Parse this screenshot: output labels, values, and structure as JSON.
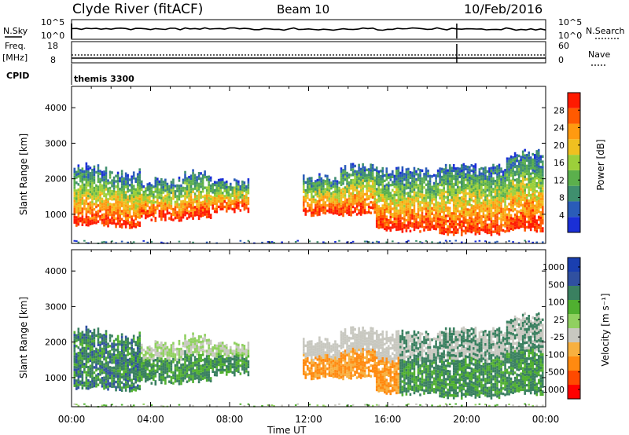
{
  "header": {
    "station": "Clyde River (fitACF)",
    "beam": "Beam 10",
    "date": "10/Feb/2016"
  },
  "top_panels": {
    "nsky_label": "N.Sky",
    "nsky_ticks": [
      "10^5",
      "10^0"
    ],
    "nsearch_label": "N.Search",
    "nsearch_ticks": [
      "10^5",
      "10^0"
    ],
    "freq_label": "Freq.",
    "freq_unit": "[MHz]",
    "freq_ticks": [
      "18",
      "8"
    ],
    "nave_label": "Nave",
    "nave_ticks": [
      "60",
      "0"
    ],
    "cpid_label": "CPID",
    "cpid_value": "themis 3300"
  },
  "colors": {
    "power": [
      "#1a2fd6",
      "#2a5cb8",
      "#3f8f6e",
      "#5bb04c",
      "#9ccf3a",
      "#f0c020",
      "#ff9a10",
      "#ff5a00",
      "#ff1a00"
    ],
    "velocity": [
      "#ff0000",
      "#ff4a00",
      "#ff8a10",
      "#f7b040",
      "#c8c8c0",
      "#90d060",
      "#50b030",
      "#3a8060",
      "#3050a0",
      "#1a3fb0"
    ]
  },
  "chart_data": [
    {
      "type": "heatmap",
      "title": "Power",
      "ylabel": "Slant Range [km]",
      "xlabel": "Time UT",
      "xticks": [
        "00:00",
        "04:00",
        "08:00",
        "12:00",
        "16:00",
        "20:00",
        "00:00"
      ],
      "yticks": [
        "1000",
        "2000",
        "3000",
        "4000"
      ],
      "ylim": [
        180,
        4600
      ],
      "xlim_hours": [
        0,
        24
      ],
      "colorbar": {
        "label": "Power [dB]",
        "ticks": [
          "4",
          "8",
          "12",
          "16",
          "20",
          "24",
          "28"
        ],
        "range": [
          0,
          32
        ]
      }
    },
    {
      "type": "heatmap",
      "title": "Velocity",
      "ylabel": "Slant Range [km]",
      "xlabel": "Time UT",
      "xticks": [
        "00:00",
        "04:00",
        "08:00",
        "12:00",
        "16:00",
        "20:00",
        "00:00"
      ],
      "yticks": [
        "1000",
        "2000",
        "3000",
        "4000"
      ],
      "ylim": [
        180,
        4600
      ],
      "xlim_hours": [
        0,
        24
      ],
      "colorbar": {
        "label": "Velocity [m s⁻¹]",
        "ticks": [
          "1000",
          "500",
          "100",
          "25",
          "-25",
          "-100",
          "-500",
          "-1000"
        ]
      }
    }
  ]
}
